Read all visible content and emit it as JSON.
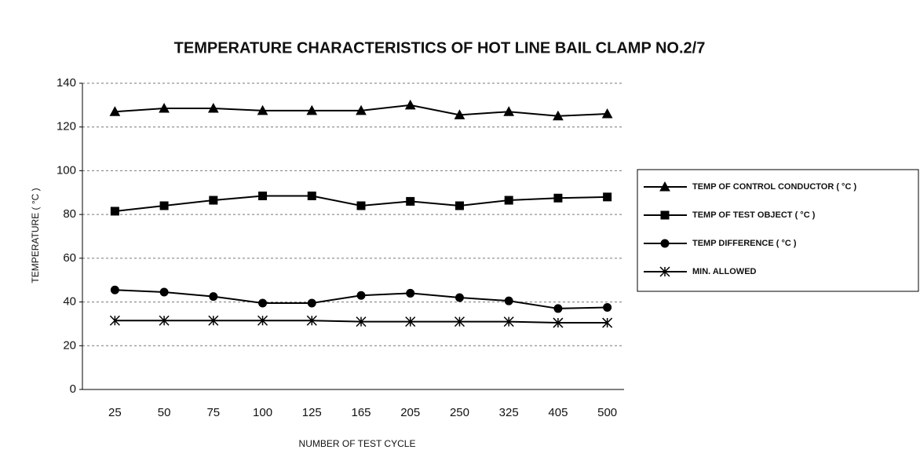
{
  "chart_data": {
    "type": "line",
    "title": "TEMPERATURE CHARACTERISTICS OF HOT LINE BAIL CLAMP NO.2/7",
    "x_label": "NUMBER OF TEST CYCLE",
    "y_label": "TEMPERATURE ( °C )",
    "categories": [
      "25",
      "50",
      "75",
      "100",
      "125",
      "165",
      "205",
      "250",
      "325",
      "405",
      "500"
    ],
    "ylim": [
      0,
      140
    ],
    "yticks": [
      0,
      20,
      40,
      60,
      80,
      100,
      120,
      140
    ],
    "grid": true,
    "legend": "right",
    "series": [
      {
        "name": "TEMP OF CONTROL CONDUCTOR ( °C )",
        "color": "#000000",
        "marker": "triangle",
        "values": [
          127,
          128.5,
          128.5,
          127.5,
          127.5,
          127.5,
          130,
          125.5,
          127,
          125,
          126
        ]
      },
      {
        "name": "TEMP OF TEST OBJECT ( °C )",
        "color": "#000000",
        "marker": "square",
        "values": [
          81.5,
          84,
          86.5,
          88.5,
          88.5,
          84,
          86,
          84,
          86.5,
          87.5,
          88
        ]
      },
      {
        "name": "TEMP DIFFERENCE ( °C )",
        "color": "#000000",
        "marker": "circle",
        "values": [
          45.5,
          44.5,
          42.5,
          39.5,
          39.5,
          43,
          44,
          42,
          40.5,
          37,
          37.5
        ]
      },
      {
        "name": "MIN. ALLOWED",
        "color": "#000000",
        "marker": "x",
        "values": [
          31.5,
          31.5,
          31.5,
          31.5,
          31.5,
          31,
          31,
          31,
          31,
          30.5,
          30.5
        ]
      }
    ]
  }
}
